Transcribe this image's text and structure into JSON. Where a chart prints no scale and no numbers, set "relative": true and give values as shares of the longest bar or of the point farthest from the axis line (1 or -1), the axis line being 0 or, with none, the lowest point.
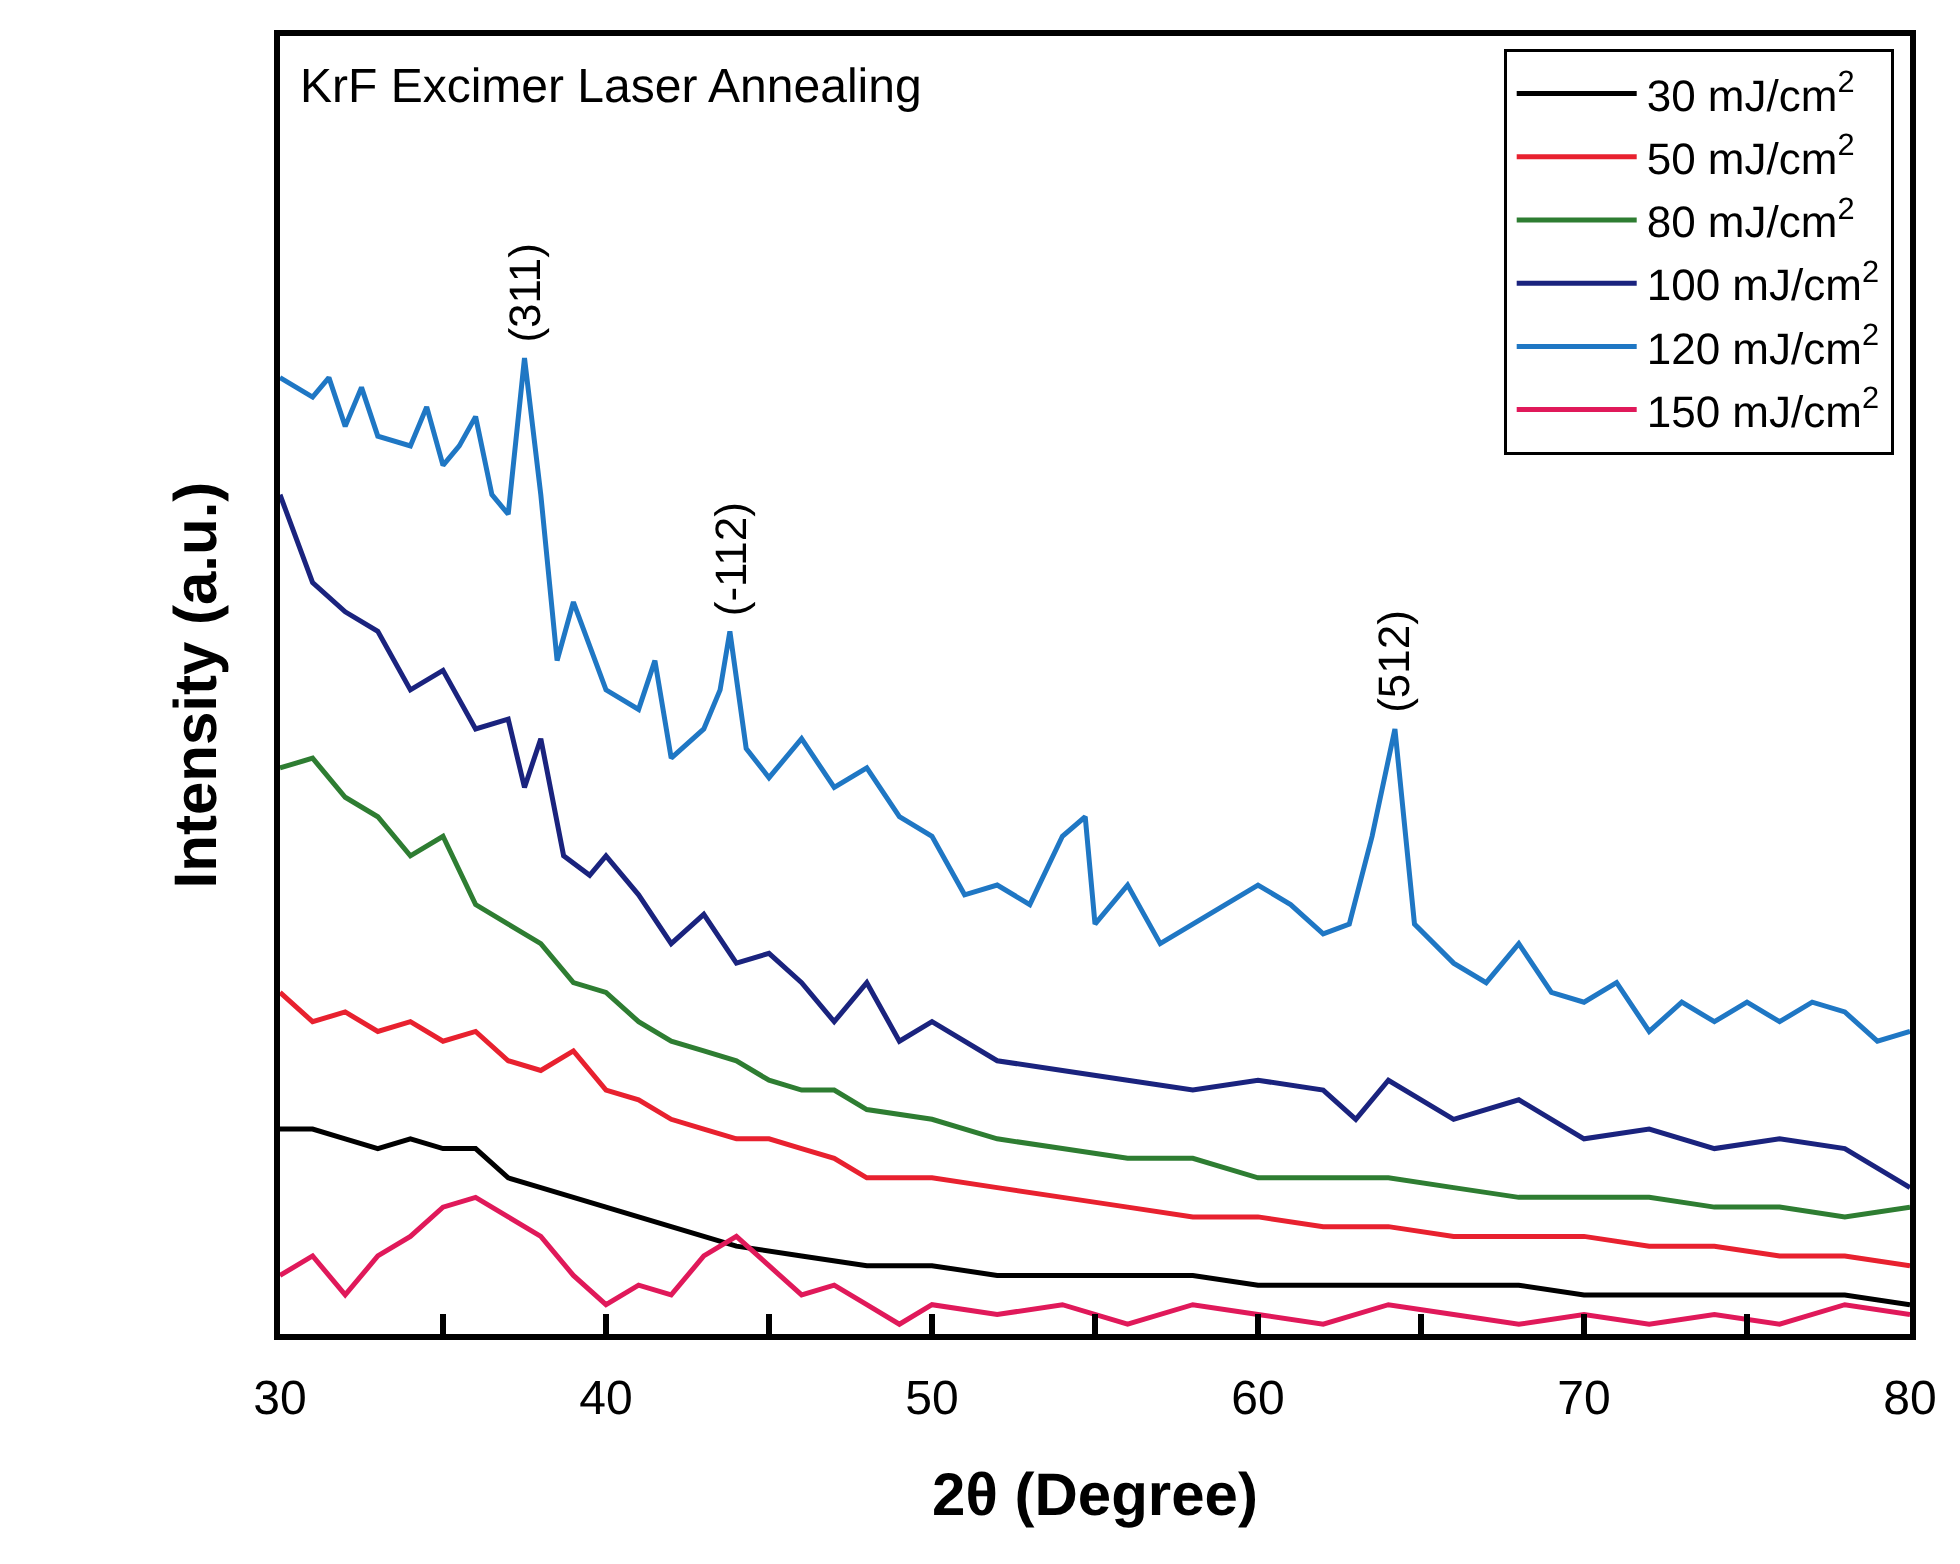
{
  "chart_data": {
    "type": "line",
    "relative": true,
    "title": "KrF Excimer Laser Annealing",
    "xlabel": "2θ (Degree)",
    "ylabel": "Intensity (a.u.)",
    "xlim": [
      30,
      80
    ],
    "xticks": [
      30,
      {
        "value": 35,
        "label": null
      },
      40,
      {
        "value": 45,
        "label": null
      },
      50,
      {
        "value": 55,
        "label": null
      },
      60,
      {
        "value": 65,
        "label": null
      },
      70,
      {
        "value": 75,
        "label": null
      },
      80
    ],
    "legend": "top right",
    "line_style": "solid",
    "marker": "none",
    "annotations": [
      {
        "text": "(311)",
        "x": 37.5,
        "y": 1.0
      },
      {
        "text": "(-112)",
        "x": 43.8,
        "y": 0.72
      },
      {
        "text": "(512)",
        "x": 64.2,
        "y": 0.62
      }
    ],
    "series": [
      {
        "name": "30 mJ/cm$^{2}$",
        "color": "#000000",
        "x": [
          30,
          31,
          32,
          33,
          34,
          35,
          36,
          37,
          38,
          39,
          40,
          42,
          44,
          46,
          48,
          50,
          52,
          54,
          56,
          58,
          60,
          62,
          64,
          66,
          68,
          70,
          72,
          74,
          76,
          78,
          80
        ],
        "values": [
          0.21,
          0.21,
          0.2,
          0.19,
          0.2,
          0.19,
          0.19,
          0.16,
          0.15,
          0.14,
          0.13,
          0.11,
          0.09,
          0.08,
          0.07,
          0.07,
          0.06,
          0.06,
          0.06,
          0.06,
          0.05,
          0.05,
          0.05,
          0.05,
          0.05,
          0.04,
          0.04,
          0.04,
          0.04,
          0.04,
          0.03
        ]
      },
      {
        "name": "50 mJ/cm$^{2}$",
        "color": "#e8212f",
        "x": [
          30,
          31,
          32,
          33,
          34,
          35,
          36,
          37,
          38,
          39,
          40,
          41,
          42,
          43,
          44,
          45,
          46,
          47,
          48,
          50,
          52,
          54,
          56,
          58,
          60,
          62,
          64,
          66,
          68,
          70,
          72,
          74,
          76,
          78,
          80
        ],
        "values": [
          0.35,
          0.32,
          0.33,
          0.31,
          0.32,
          0.3,
          0.31,
          0.28,
          0.27,
          0.29,
          0.25,
          0.24,
          0.22,
          0.21,
          0.2,
          0.2,
          0.19,
          0.18,
          0.16,
          0.16,
          0.15,
          0.14,
          0.13,
          0.12,
          0.12,
          0.11,
          0.11,
          0.1,
          0.1,
          0.1,
          0.09,
          0.09,
          0.08,
          0.08,
          0.07
        ]
      },
      {
        "name": "80 mJ/cm$^{2}$",
        "color": "#2e7d32",
        "x": [
          30,
          31,
          32,
          33,
          34,
          35,
          36,
          37,
          38,
          39,
          40,
          41,
          42,
          43,
          44,
          45,
          46,
          47,
          48,
          50,
          52,
          54,
          56,
          58,
          60,
          62,
          64,
          66,
          68,
          70,
          72,
          74,
          76,
          78,
          80
        ],
        "values": [
          0.58,
          0.59,
          0.55,
          0.53,
          0.49,
          0.51,
          0.44,
          0.42,
          0.4,
          0.36,
          0.35,
          0.32,
          0.3,
          0.29,
          0.28,
          0.26,
          0.25,
          0.25,
          0.23,
          0.22,
          0.2,
          0.19,
          0.18,
          0.18,
          0.16,
          0.16,
          0.16,
          0.15,
          0.14,
          0.14,
          0.14,
          0.13,
          0.13,
          0.12,
          0.13
        ]
      },
      {
        "name": "100 mJ/cm$^{2}$",
        "color": "#1a237e",
        "x": [
          30,
          31,
          32,
          33,
          34,
          35,
          36,
          37,
          37.5,
          38,
          38.7,
          39.5,
          40,
          41,
          42,
          43,
          44,
          45,
          46,
          47,
          48,
          49,
          50,
          52,
          54,
          56,
          58,
          60,
          62,
          63,
          64,
          66,
          68,
          70,
          72,
          74,
          76,
          78,
          80
        ],
        "values": [
          0.86,
          0.77,
          0.74,
          0.72,
          0.66,
          0.68,
          0.62,
          0.63,
          0.56,
          0.61,
          0.49,
          0.47,
          0.49,
          0.45,
          0.4,
          0.43,
          0.38,
          0.39,
          0.36,
          0.32,
          0.36,
          0.3,
          0.32,
          0.28,
          0.27,
          0.26,
          0.25,
          0.26,
          0.25,
          0.22,
          0.26,
          0.22,
          0.24,
          0.2,
          0.21,
          0.19,
          0.2,
          0.19,
          0.15
        ]
      },
      {
        "name": "120 mJ/cm$^{2}$",
        "color": "#1f77c4",
        "x": [
          30,
          31,
          31.5,
          32,
          32.5,
          33,
          34,
          34.5,
          35,
          35.5,
          36,
          36.5,
          37,
          37.5,
          38,
          38.5,
          39,
          40,
          41,
          41.5,
          42,
          43,
          43.5,
          43.8,
          44.3,
          45,
          46,
          47,
          48,
          49,
          50,
          51,
          52,
          53,
          54,
          54.7,
          55,
          56,
          57,
          58,
          59,
          60,
          61,
          62,
          62.8,
          63.5,
          64.2,
          64.8,
          66,
          67,
          68,
          69,
          70,
          71,
          72,
          73,
          74,
          75,
          76,
          77,
          78,
          79,
          80
        ],
        "values": [
          0.98,
          0.96,
          0.98,
          0.93,
          0.97,
          0.92,
          0.91,
          0.95,
          0.89,
          0.91,
          0.94,
          0.86,
          0.84,
          1.0,
          0.86,
          0.69,
          0.75,
          0.66,
          0.64,
          0.69,
          0.59,
          0.62,
          0.66,
          0.72,
          0.6,
          0.57,
          0.61,
          0.56,
          0.58,
          0.53,
          0.51,
          0.45,
          0.46,
          0.44,
          0.51,
          0.53,
          0.42,
          0.46,
          0.4,
          0.42,
          0.44,
          0.46,
          0.44,
          0.41,
          0.42,
          0.51,
          0.62,
          0.42,
          0.38,
          0.36,
          0.4,
          0.35,
          0.34,
          0.36,
          0.31,
          0.34,
          0.32,
          0.34,
          0.32,
          0.34,
          0.33,
          0.3,
          0.31
        ]
      },
      {
        "name": "150 mJ/cm$^{2}$",
        "color": "#e0195a",
        "x": [
          30,
          31,
          32,
          33,
          34,
          35,
          36,
          37,
          38,
          39,
          40,
          41,
          42,
          43,
          44,
          45,
          46,
          47,
          48,
          49,
          50,
          52,
          54,
          56,
          58,
          60,
          62,
          64,
          66,
          68,
          70,
          72,
          74,
          76,
          78,
          80
        ],
        "values": [
          0.06,
          0.08,
          0.04,
          0.08,
          0.1,
          0.13,
          0.14,
          0.12,
          0.1,
          0.06,
          0.03,
          0.05,
          0.04,
          0.08,
          0.1,
          0.07,
          0.04,
          0.05,
          0.03,
          0.01,
          0.03,
          0.02,
          0.03,
          0.01,
          0.03,
          0.02,
          0.01,
          0.03,
          0.02,
          0.01,
          0.02,
          0.01,
          0.02,
          0.01,
          0.03,
          0.02
        ]
      }
    ]
  }
}
